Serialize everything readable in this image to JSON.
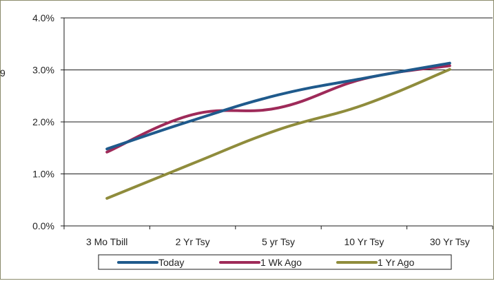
{
  "chart_data": {
    "type": "line",
    "title": "",
    "xlabel": "",
    "ylabel": "",
    "categories": [
      "3 Mo Tbill",
      "2 Yr Tsy",
      "5 yr Tsy",
      "10 Yr Tsy",
      "30 Yr Tsy"
    ],
    "y_ticks": [
      "0.0%",
      "1.0%",
      "2.0%",
      "3.0%",
      "4.0%"
    ],
    "ylim": [
      0,
      4
    ],
    "y_unit": "%",
    "grid": "horizontal",
    "legend_position": "bottom",
    "series": [
      {
        "name": "Today",
        "color": "#1f5a8c",
        "values": [
          1.48,
          2.03,
          2.52,
          2.84,
          3.13
        ]
      },
      {
        "name": "1 Wk Ago",
        "color": "#9e2a59",
        "values": [
          1.42,
          2.14,
          2.27,
          2.83,
          3.08
        ]
      },
      {
        "name": "1 Yr Ago",
        "color": "#8f8c3c",
        "values": [
          0.53,
          1.2,
          1.85,
          2.33,
          3.01
        ]
      }
    ]
  },
  "stray_label": "9"
}
